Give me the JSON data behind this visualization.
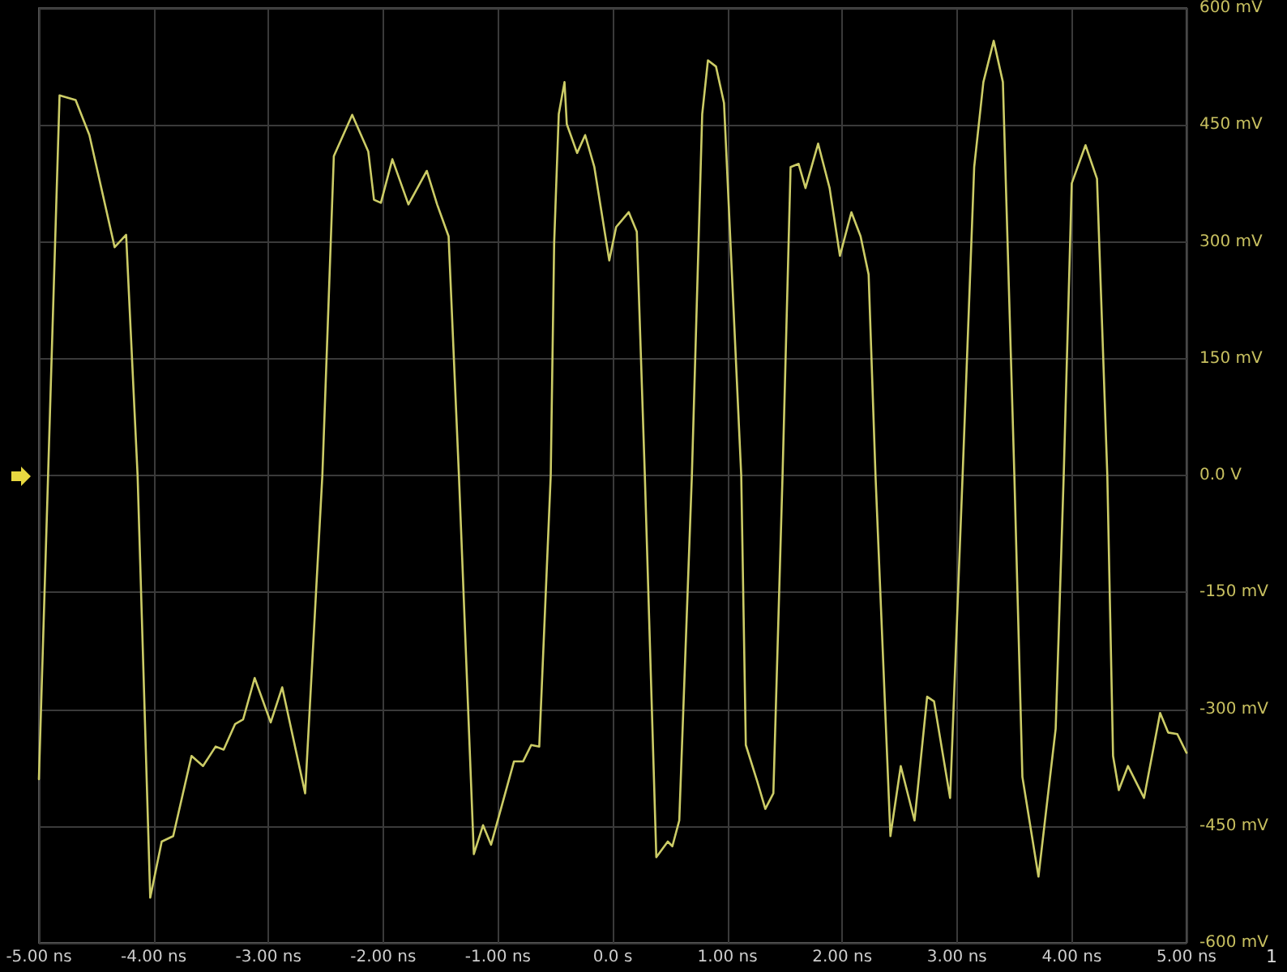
{
  "chart_data": {
    "type": "line",
    "x": [
      -5.0,
      -4.92,
      -4.82,
      -4.68,
      -4.56,
      -4.34,
      -4.24,
      -4.14,
      -4.03,
      -3.93,
      -3.83,
      -3.67,
      -3.57,
      -3.46,
      -3.39,
      -3.29,
      -3.22,
      -3.12,
      -2.98,
      -2.88,
      -2.68,
      -2.53,
      -2.43,
      -2.27,
      -2.13,
      -2.08,
      -2.02,
      -1.92,
      -1.78,
      -1.62,
      -1.53,
      -1.43,
      -1.34,
      -1.21,
      -1.13,
      -1.06,
      -0.86,
      -0.78,
      -0.71,
      -0.64,
      -0.54,
      -0.51,
      -0.47,
      -0.42,
      -0.4,
      -0.31,
      -0.24,
      -0.16,
      -0.03,
      0.03,
      0.14,
      0.21,
      0.28,
      0.38,
      0.48,
      0.52,
      0.58,
      0.69,
      0.78,
      0.83,
      0.9,
      0.97,
      1.12,
      1.16,
      1.26,
      1.33,
      1.4,
      1.48,
      1.55,
      1.62,
      1.68,
      1.79,
      1.89,
      1.98,
      2.08,
      2.16,
      2.23,
      2.29,
      2.42,
      2.51,
      2.63,
      2.74,
      2.8,
      2.94,
      3.05,
      3.15,
      3.23,
      3.32,
      3.4,
      3.5,
      3.57,
      3.71,
      3.86,
      3.93,
      4.0,
      4.12,
      4.22,
      4.31,
      4.36,
      4.41,
      4.49,
      4.63,
      4.77,
      4.84,
      4.92,
      5.0
    ],
    "series": [
      {
        "color": "#cccc66",
        "values": [
          -390,
          0,
          488,
          482,
          437,
          293,
          309,
          0,
          -542,
          -470,
          -463,
          -360,
          -373,
          -348,
          -352,
          -319,
          -313,
          -260,
          -317,
          -272,
          -408,
          0,
          410,
          463,
          416,
          354,
          350,
          406,
          348,
          391,
          348,
          307,
          0,
          -486,
          -449,
          -474,
          -367,
          -367,
          -346,
          -348,
          0,
          299,
          464,
          505,
          451,
          414,
          437,
          396,
          276,
          319,
          338,
          313,
          0,
          -490,
          -470,
          -476,
          -443,
          0,
          464,
          533,
          525,
          478,
          0,
          -346,
          -393,
          -428,
          -408,
          0,
          396,
          400,
          369,
          426,
          369,
          282,
          338,
          307,
          258,
          0,
          -463,
          -373,
          -443,
          -284,
          -290,
          -414,
          4,
          396,
          505,
          558,
          505,
          0,
          -387,
          -515,
          -325,
          0,
          375,
          424,
          381,
          0,
          -360,
          -404,
          -373,
          -414,
          -305,
          -330,
          -332,
          -356
        ]
      }
    ],
    "xlim": [
      -5,
      5
    ],
    "xticks": [
      {
        "value": -5,
        "label": "-5.00 ns"
      },
      {
        "value": -4,
        "label": "-4.00 ns"
      },
      {
        "value": -3,
        "label": "-3.00 ns"
      },
      {
        "value": -2,
        "label": "-2.00 ns"
      },
      {
        "value": -1,
        "label": "-1.00 ns"
      },
      {
        "value": 0,
        "label": "0.0 s"
      },
      {
        "value": 1,
        "label": "1.00 ns"
      },
      {
        "value": 2,
        "label": "2.00 ns"
      },
      {
        "value": 3,
        "label": "3.00 ns"
      },
      {
        "value": 4,
        "label": "4.00 ns"
      },
      {
        "value": 5,
        "label": "5.00 ns"
      }
    ],
    "ylim": [
      -600,
      600
    ],
    "yticks": [
      {
        "value": -600,
        "label": "-600 mV"
      },
      {
        "value": -450,
        "label": "-450 mV"
      },
      {
        "value": -300,
        "label": "-300 mV"
      },
      {
        "value": -150,
        "label": "-150 mV"
      },
      {
        "value": 0,
        "label": "0.0 V"
      },
      {
        "value": 150,
        "label": "150 mV"
      },
      {
        "value": 300,
        "label": "300 mV"
      },
      {
        "value": 450,
        "label": "450 mV"
      },
      {
        "value": 600,
        "label": "600 mV"
      }
    ],
    "grid": true,
    "marker": "none",
    "line_style": "solid",
    "annotations": [
      "1"
    ]
  }
}
